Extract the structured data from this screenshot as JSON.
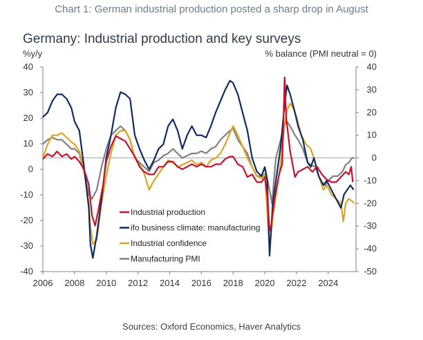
{
  "caption": "Chart 1: German industrial production posted a sharp drop in August",
  "source": "Sources: Oxford Economics, Haver Analytics",
  "chart_data": {
    "type": "line",
    "title": "Germany: Industrial production and key surveys",
    "left_axis_label": "%y/y",
    "right_axis_label": "% balance (PMI neutral = 0)",
    "left_ylim": [
      -40,
      40
    ],
    "right_ylim": [
      -50,
      40
    ],
    "left_ticks": [
      40,
      30,
      20,
      10,
      0,
      -10,
      -20,
      -30,
      -40
    ],
    "right_ticks": [
      40,
      30,
      20,
      10,
      0,
      -10,
      -20,
      -30,
      -40,
      -50
    ],
    "xlim": [
      2006,
      2025.75
    ],
    "x_ticks": [
      "2006",
      "2008",
      "2010",
      "2012",
      "2014",
      "2016",
      "2018",
      "2020",
      "2022",
      "2024"
    ],
    "zero_line_right": 0,
    "grid": false,
    "legend_position": "bottom-left",
    "series": [
      {
        "name": "Industrial production",
        "axis": "left",
        "color": "#c8102e",
        "points": [
          [
            2006.0,
            4
          ],
          [
            2006.3,
            6
          ],
          [
            2006.6,
            5
          ],
          [
            2006.9,
            7
          ],
          [
            2007.2,
            5
          ],
          [
            2007.5,
            6
          ],
          [
            2007.8,
            4
          ],
          [
            2008.0,
            5
          ],
          [
            2008.3,
            3
          ],
          [
            2008.6,
            0
          ],
          [
            2008.9,
            -6
          ],
          [
            2009.1,
            -18
          ],
          [
            2009.3,
            -22
          ],
          [
            2009.5,
            -16
          ],
          [
            2009.8,
            -6
          ],
          [
            2010.0,
            3
          ],
          [
            2010.3,
            9
          ],
          [
            2010.6,
            13
          ],
          [
            2010.9,
            12
          ],
          [
            2011.2,
            11
          ],
          [
            2011.5,
            8
          ],
          [
            2011.8,
            5
          ],
          [
            2012.1,
            1
          ],
          [
            2012.4,
            -1
          ],
          [
            2012.7,
            -2
          ],
          [
            2013.0,
            -2
          ],
          [
            2013.3,
            1
          ],
          [
            2013.6,
            1
          ],
          [
            2013.9,
            3
          ],
          [
            2014.2,
            3
          ],
          [
            2014.5,
            1
          ],
          [
            2014.8,
            0
          ],
          [
            2015.1,
            1
          ],
          [
            2015.4,
            2
          ],
          [
            2015.7,
            1
          ],
          [
            2016.0,
            2
          ],
          [
            2016.3,
            1
          ],
          [
            2016.6,
            1
          ],
          [
            2016.9,
            2
          ],
          [
            2017.2,
            2
          ],
          [
            2017.5,
            4
          ],
          [
            2017.8,
            5
          ],
          [
            2018.0,
            5
          ],
          [
            2018.3,
            2
          ],
          [
            2018.6,
            1
          ],
          [
            2018.9,
            -3
          ],
          [
            2019.2,
            -2
          ],
          [
            2019.5,
            -5
          ],
          [
            2019.8,
            -5
          ],
          [
            2020.0,
            -3
          ],
          [
            2020.15,
            -10
          ],
          [
            2020.3,
            -24
          ],
          [
            2020.4,
            -22
          ],
          [
            2020.6,
            -12
          ],
          [
            2020.9,
            -2
          ],
          [
            2021.1,
            2
          ],
          [
            2021.25,
            36
          ],
          [
            2021.35,
            20
          ],
          [
            2021.6,
            7
          ],
          [
            2021.9,
            -3
          ],
          [
            2022.1,
            -1
          ],
          [
            2022.4,
            0
          ],
          [
            2022.7,
            1
          ],
          [
            2023.0,
            -1
          ],
          [
            2023.3,
            1
          ],
          [
            2023.6,
            -2
          ],
          [
            2023.9,
            -4
          ],
          [
            2024.2,
            -5
          ],
          [
            2024.5,
            -5
          ],
          [
            2024.8,
            -3
          ],
          [
            2025.1,
            -1
          ],
          [
            2025.3,
            -2
          ],
          [
            2025.45,
            1
          ],
          [
            2025.55,
            -5
          ]
        ]
      },
      {
        "name": "ifo business climate: manufacturing",
        "axis": "right",
        "color": "#0e2a62",
        "points": [
          [
            2006.0,
            18
          ],
          [
            2006.3,
            20
          ],
          [
            2006.6,
            25
          ],
          [
            2006.9,
            28
          ],
          [
            2007.2,
            28
          ],
          [
            2007.5,
            26
          ],
          [
            2007.8,
            22
          ],
          [
            2008.0,
            16
          ],
          [
            2008.3,
            12
          ],
          [
            2008.6,
            -4
          ],
          [
            2008.9,
            -22
          ],
          [
            2009.0,
            -38
          ],
          [
            2009.15,
            -44
          ],
          [
            2009.4,
            -34
          ],
          [
            2009.7,
            -18
          ],
          [
            2010.0,
            0
          ],
          [
            2010.3,
            10
          ],
          [
            2010.6,
            22
          ],
          [
            2010.9,
            29
          ],
          [
            2011.2,
            28
          ],
          [
            2011.5,
            26
          ],
          [
            2011.8,
            10
          ],
          [
            2012.1,
            4
          ],
          [
            2012.4,
            -1
          ],
          [
            2012.7,
            -5
          ],
          [
            2013.0,
            -1
          ],
          [
            2013.3,
            4
          ],
          [
            2013.6,
            6
          ],
          [
            2013.9,
            14
          ],
          [
            2014.2,
            17
          ],
          [
            2014.5,
            12
          ],
          [
            2014.8,
            4
          ],
          [
            2015.1,
            10
          ],
          [
            2015.4,
            14
          ],
          [
            2015.7,
            10
          ],
          [
            2016.0,
            10
          ],
          [
            2016.3,
            9
          ],
          [
            2016.6,
            14
          ],
          [
            2016.9,
            20
          ],
          [
            2017.2,
            25
          ],
          [
            2017.5,
            30
          ],
          [
            2017.8,
            34
          ],
          [
            2018.0,
            33
          ],
          [
            2018.3,
            28
          ],
          [
            2018.6,
            20
          ],
          [
            2018.9,
            12
          ],
          [
            2019.2,
            0
          ],
          [
            2019.5,
            -6
          ],
          [
            2019.8,
            -8
          ],
          [
            2020.0,
            -4
          ],
          [
            2020.15,
            -10
          ],
          [
            2020.3,
            -43
          ],
          [
            2020.5,
            -20
          ],
          [
            2020.8,
            -5
          ],
          [
            2021.0,
            5
          ],
          [
            2021.2,
            20
          ],
          [
            2021.4,
            32
          ],
          [
            2021.6,
            28
          ],
          [
            2021.9,
            20
          ],
          [
            2022.1,
            14
          ],
          [
            2022.4,
            8
          ],
          [
            2022.7,
            -2
          ],
          [
            2022.9,
            -4
          ],
          [
            2023.1,
            0
          ],
          [
            2023.4,
            -8
          ],
          [
            2023.7,
            -12
          ],
          [
            2023.9,
            -10
          ],
          [
            2024.2,
            -14
          ],
          [
            2024.5,
            -18
          ],
          [
            2024.8,
            -22
          ],
          [
            2025.0,
            -16
          ],
          [
            2025.2,
            -14
          ],
          [
            2025.4,
            -12
          ],
          [
            2025.6,
            -14
          ]
        ]
      },
      {
        "name": "Industrial confidence",
        "axis": "right",
        "color": "#daa520",
        "points": [
          [
            2006.0,
            0
          ],
          [
            2006.3,
            6
          ],
          [
            2006.6,
            10
          ],
          [
            2006.9,
            10
          ],
          [
            2007.2,
            11
          ],
          [
            2007.5,
            9
          ],
          [
            2007.8,
            7
          ],
          [
            2008.0,
            6
          ],
          [
            2008.3,
            3
          ],
          [
            2008.6,
            -5
          ],
          [
            2008.9,
            -20
          ],
          [
            2009.0,
            -30
          ],
          [
            2009.15,
            -38
          ],
          [
            2009.4,
            -36
          ],
          [
            2009.7,
            -20
          ],
          [
            2010.0,
            -8
          ],
          [
            2010.3,
            2
          ],
          [
            2010.6,
            10
          ],
          [
            2010.9,
            12
          ],
          [
            2011.2,
            12
          ],
          [
            2011.5,
            8
          ],
          [
            2011.8,
            0
          ],
          [
            2012.1,
            -3
          ],
          [
            2012.4,
            -7
          ],
          [
            2012.7,
            -14
          ],
          [
            2013.0,
            -10
          ],
          [
            2013.3,
            -7
          ],
          [
            2013.6,
            -4
          ],
          [
            2013.9,
            -1
          ],
          [
            2014.2,
            -2
          ],
          [
            2014.5,
            -4
          ],
          [
            2014.8,
            -3
          ],
          [
            2015.1,
            -2
          ],
          [
            2015.4,
            -1
          ],
          [
            2015.7,
            -3
          ],
          [
            2016.0,
            -2
          ],
          [
            2016.3,
            -4
          ],
          [
            2016.6,
            -1
          ],
          [
            2016.9,
            0
          ],
          [
            2017.2,
            2
          ],
          [
            2017.5,
            6
          ],
          [
            2017.8,
            11
          ],
          [
            2018.0,
            14
          ],
          [
            2018.3,
            10
          ],
          [
            2018.6,
            5
          ],
          [
            2018.9,
            0
          ],
          [
            2019.2,
            -4
          ],
          [
            2019.5,
            -8
          ],
          [
            2019.8,
            -9
          ],
          [
            2020.0,
            -7
          ],
          [
            2020.3,
            -40
          ],
          [
            2020.5,
            -26
          ],
          [
            2020.8,
            -12
          ],
          [
            2021.0,
            -2
          ],
          [
            2021.2,
            12
          ],
          [
            2021.4,
            21
          ],
          [
            2021.6,
            24
          ],
          [
            2021.8,
            22
          ],
          [
            2022.0,
            18
          ],
          [
            2022.3,
            10
          ],
          [
            2022.6,
            6
          ],
          [
            2022.9,
            4
          ],
          [
            2023.1,
            0
          ],
          [
            2023.4,
            -8
          ],
          [
            2023.7,
            -14
          ],
          [
            2023.9,
            -12
          ],
          [
            2024.2,
            -16
          ],
          [
            2024.5,
            -18
          ],
          [
            2024.8,
            -20
          ],
          [
            2024.95,
            -28
          ],
          [
            2025.1,
            -20
          ],
          [
            2025.3,
            -18
          ],
          [
            2025.5,
            -19
          ],
          [
            2025.65,
            -20
          ]
        ]
      },
      {
        "name": "Manufacturing PMI",
        "axis": "right",
        "color": "#808080",
        "points": [
          [
            2006.0,
            6
          ],
          [
            2006.3,
            8
          ],
          [
            2006.6,
            9
          ],
          [
            2006.9,
            8
          ],
          [
            2007.2,
            8
          ],
          [
            2007.5,
            6
          ],
          [
            2007.8,
            4
          ],
          [
            2008.0,
            4
          ],
          [
            2008.3,
            2
          ],
          [
            2008.6,
            -6
          ],
          [
            2008.9,
            -16
          ],
          [
            2009.1,
            -18
          ],
          [
            2009.4,
            -14
          ],
          [
            2009.7,
            -4
          ],
          [
            2010.0,
            4
          ],
          [
            2010.3,
            10
          ],
          [
            2010.6,
            12
          ],
          [
            2010.9,
            14
          ],
          [
            2011.2,
            12
          ],
          [
            2011.5,
            8
          ],
          [
            2011.8,
            0
          ],
          [
            2012.1,
            -2
          ],
          [
            2012.4,
            -4
          ],
          [
            2012.7,
            -6
          ],
          [
            2013.0,
            -2
          ],
          [
            2013.3,
            -1
          ],
          [
            2013.6,
            1
          ],
          [
            2013.9,
            2
          ],
          [
            2014.2,
            4
          ],
          [
            2014.5,
            2
          ],
          [
            2014.8,
            0
          ],
          [
            2015.1,
            1
          ],
          [
            2015.4,
            2
          ],
          [
            2015.7,
            2
          ],
          [
            2016.0,
            3
          ],
          [
            2016.3,
            2
          ],
          [
            2016.6,
            4
          ],
          [
            2016.9,
            5
          ],
          [
            2017.2,
            8
          ],
          [
            2017.5,
            10
          ],
          [
            2017.8,
            12
          ],
          [
            2018.0,
            13
          ],
          [
            2018.3,
            8
          ],
          [
            2018.6,
            5
          ],
          [
            2018.9,
            2
          ],
          [
            2019.2,
            -4
          ],
          [
            2019.5,
            -8
          ],
          [
            2019.8,
            -8
          ],
          [
            2020.0,
            -4
          ],
          [
            2020.3,
            -14
          ],
          [
            2020.45,
            -20
          ],
          [
            2020.7,
            0
          ],
          [
            2021.0,
            8
          ],
          [
            2021.2,
            14
          ],
          [
            2021.4,
            16
          ],
          [
            2021.6,
            14
          ],
          [
            2021.9,
            10
          ],
          [
            2022.1,
            8
          ],
          [
            2022.4,
            4
          ],
          [
            2022.7,
            -2
          ],
          [
            2022.9,
            -3
          ],
          [
            2023.2,
            -4
          ],
          [
            2023.5,
            -10
          ],
          [
            2023.8,
            -12
          ],
          [
            2024.0,
            -10
          ],
          [
            2024.3,
            -8
          ],
          [
            2024.6,
            -8
          ],
          [
            2024.9,
            -6
          ],
          [
            2025.1,
            -3
          ],
          [
            2025.3,
            -2
          ],
          [
            2025.5,
            0
          ],
          [
            2025.65,
            0
          ]
        ]
      }
    ]
  }
}
